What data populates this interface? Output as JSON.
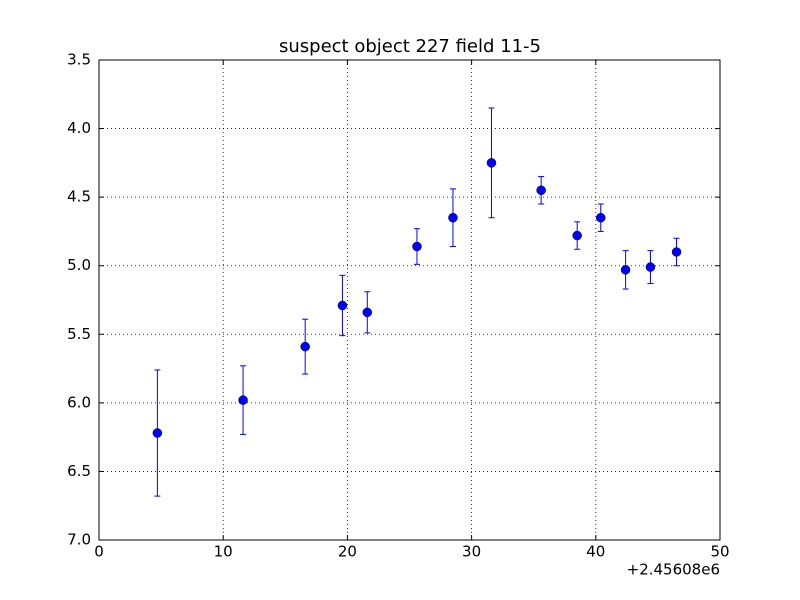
{
  "chart_data": {
    "type": "errorbar",
    "title": "suspect object 227 field 11-5",
    "x": [
      4.7,
      11.6,
      16.6,
      19.6,
      21.6,
      25.6,
      28.5,
      31.6,
      35.6,
      38.5,
      40.4,
      42.4,
      44.4,
      46.5
    ],
    "series": [
      {
        "color": "#0000ff",
        "values": [
          6.22,
          5.98,
          5.59,
          5.29,
          5.34,
          4.86,
          4.65,
          4.25,
          4.45,
          4.78,
          4.65,
          5.03,
          5.01,
          4.9
        ],
        "errors": [
          0.46,
          0.25,
          0.2,
          0.22,
          0.15,
          0.13,
          0.21,
          0.4,
          0.1,
          0.1,
          0.1,
          0.14,
          0.12,
          0.1
        ]
      }
    ],
    "xlim": [
      0,
      50
    ],
    "xticks": [
      0,
      10,
      20,
      30,
      40,
      50
    ],
    "x_offset_label": "+2.45608e6",
    "ylim": [
      7.0,
      3.5
    ],
    "y_inverted": true,
    "yticks": [
      3.5,
      {
        "value": 4.0,
        "label": "4.0"
      },
      4.5,
      {
        "value": 5.0,
        "label": "5.0"
      },
      5.5,
      {
        "value": 6.0,
        "label": "6.0"
      },
      6.5,
      {
        "value": 7.0,
        "label": "7.0"
      }
    ],
    "grid": true
  }
}
